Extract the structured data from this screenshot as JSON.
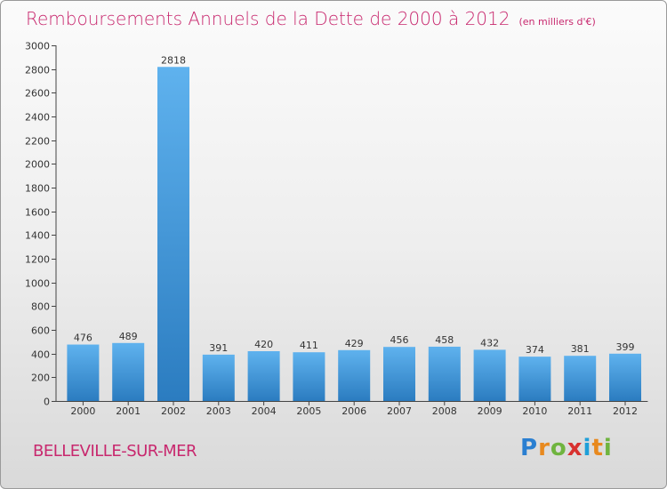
{
  "title": {
    "main": "Remboursements Annuels de la Dette de 2000 à 2012",
    "unit": "(en milliers d'€)"
  },
  "city": "BELLEVILLE-SUR-MER",
  "logo": {
    "letters": [
      "P",
      "r",
      "o",
      "x",
      "i",
      "t",
      "i"
    ],
    "colors": [
      "#2a7fd1",
      "#e8891e",
      "#6fb43f",
      "#d8312f",
      "#1f9fd8",
      "#e8891e",
      "#6fb43f"
    ]
  },
  "colors": {
    "bar_light": "#5fb2ee",
    "bar_dark": "#2b7cc0",
    "title": "#c8286e"
  },
  "chart_data": {
    "type": "bar",
    "categories": [
      "2000",
      "2001",
      "2002",
      "2003",
      "2004",
      "2005",
      "2006",
      "2007",
      "2008",
      "2009",
      "2010",
      "2011",
      "2012"
    ],
    "values": [
      476,
      489,
      2818,
      391,
      420,
      411,
      429,
      456,
      458,
      432,
      374,
      381,
      399
    ],
    "ylim": [
      0,
      3000
    ],
    "yticks": [
      0,
      200,
      400,
      600,
      800,
      1000,
      1200,
      1400,
      1600,
      1800,
      2000,
      2200,
      2400,
      2600,
      2800,
      3000
    ],
    "grid": false
  }
}
